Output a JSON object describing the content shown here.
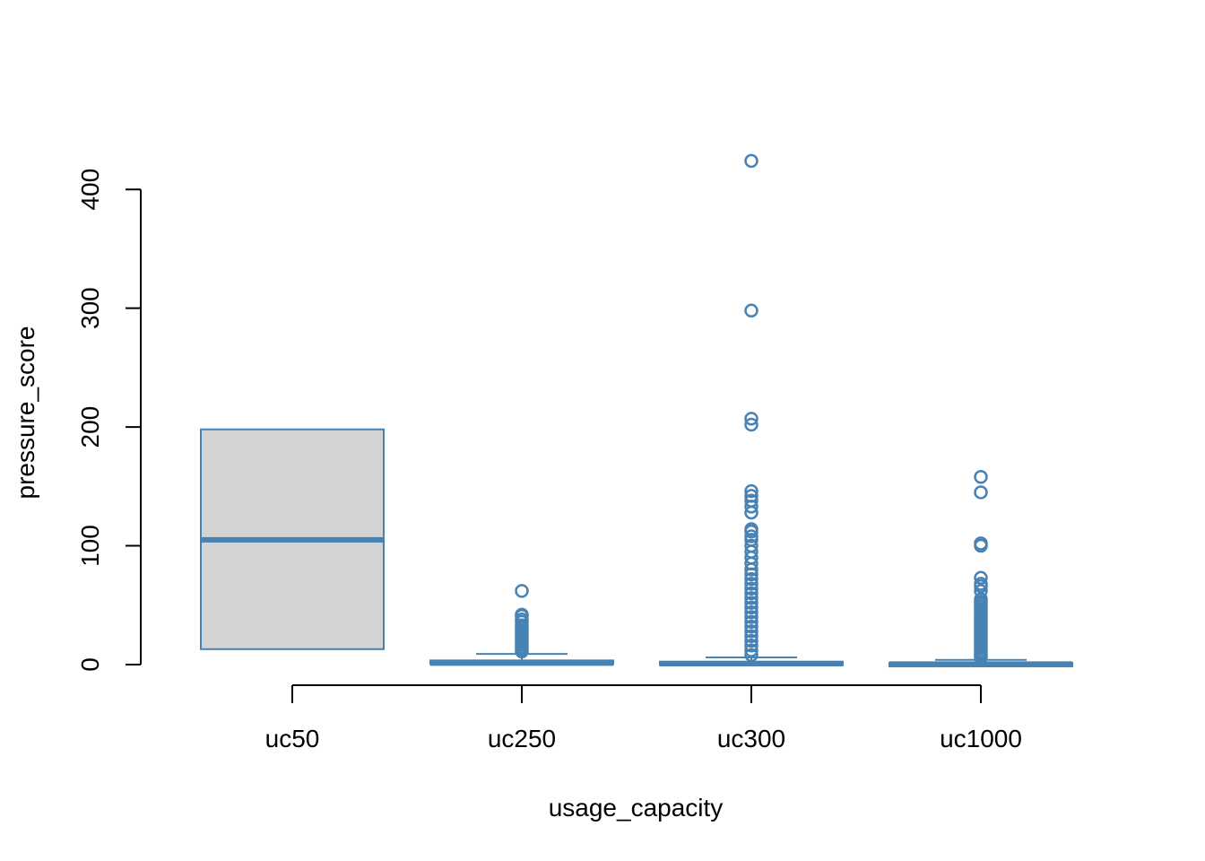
{
  "colors": {
    "accent": "#4682b4",
    "box_fill": "#d3d3d3",
    "axis": "#000000",
    "background": "#ffffff"
  },
  "chart_data": {
    "type": "box",
    "xlabel": "usage_capacity",
    "ylabel": "pressure_score",
    "ylim": [
      -17,
      433
    ],
    "yticks": [
      0,
      100,
      200,
      300,
      400
    ],
    "ytick_labels": [
      "0",
      "100",
      "200",
      "300",
      "400"
    ],
    "grid": false,
    "legend": "none",
    "categories": [
      "uc50",
      "uc250",
      "uc300",
      "uc1000"
    ],
    "boxes": [
      {
        "category": "uc50",
        "q1": 13,
        "median": 105,
        "q3": 198,
        "whisker_low": 13,
        "whisker_high": 198,
        "outliers": []
      },
      {
        "category": "uc250",
        "q1": 0.3,
        "median": 1.2,
        "q3": 3.5,
        "whisker_low": 0,
        "whisker_high": 9,
        "outliers": [
          11,
          13,
          15,
          17,
          19,
          21,
          23,
          25,
          27,
          29,
          31,
          33,
          36,
          38,
          41,
          42,
          62
        ]
      },
      {
        "category": "uc300",
        "q1": 0.2,
        "median": 0.8,
        "q3": 2.5,
        "whisker_low": 0,
        "whisker_high": 6,
        "outliers": [
          8,
          12,
          16,
          20,
          24,
          28,
          32,
          36,
          40,
          44,
          48,
          52,
          56,
          60,
          64,
          68,
          72,
          76,
          80,
          85,
          90,
          95,
          100,
          105,
          108,
          112,
          114,
          128,
          133,
          138,
          142,
          146,
          202,
          207,
          298,
          424
        ]
      },
      {
        "category": "uc1000",
        "q1": 0.1,
        "median": 0.5,
        "q3": 1.5,
        "whisker_low": 0,
        "whisker_high": 4,
        "outliers": [
          6,
          8,
          10,
          12,
          14,
          16,
          18,
          20,
          22,
          24,
          26,
          28,
          30,
          32,
          34,
          36,
          38,
          40,
          42,
          45,
          47,
          49,
          51,
          53,
          55,
          62,
          66,
          68,
          73,
          100,
          102,
          145,
          158
        ]
      }
    ]
  }
}
